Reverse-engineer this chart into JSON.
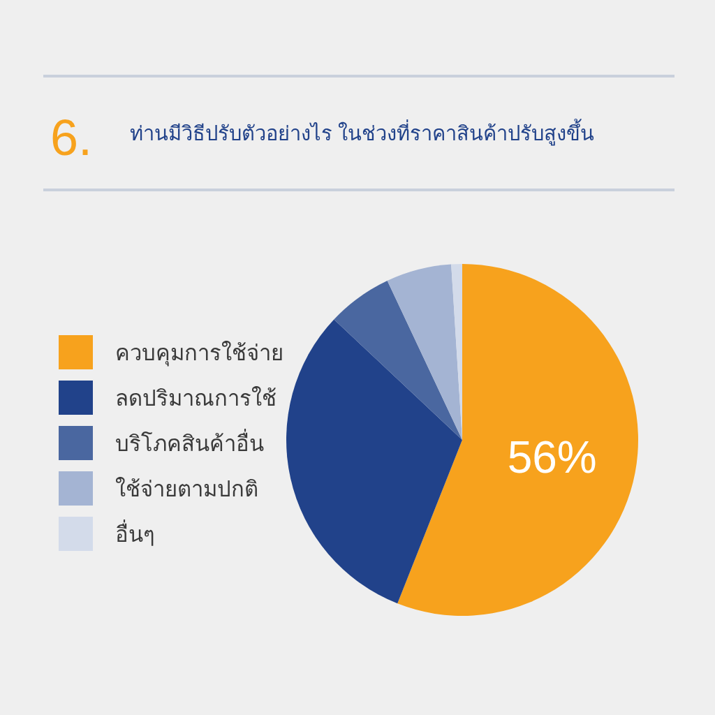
{
  "chart_data": {
    "type": "pie",
    "title": "ท่านมีวิธีปรับตัวอย่างไร ในช่วงที่ราคาสินค้าปรับสูงขึ้น",
    "annotations": [
      "6."
    ],
    "categories": [
      "ควบคุมการใช้จ่าย",
      "ลดปริมาณการใช้",
      "บริโภคสินค้าอื่น",
      "ใช้จ่ายตามปกติ",
      "อื่นๆ"
    ],
    "values": [
      56,
      31,
      6,
      6,
      1
    ],
    "colors": [
      "#f7a21d",
      "#21428a",
      "#4a67a0",
      "#a4b4d3",
      "#d3dbea"
    ],
    "value_labels": [
      "56%",
      null,
      null,
      null,
      null
    ],
    "legend": "left"
  }
}
